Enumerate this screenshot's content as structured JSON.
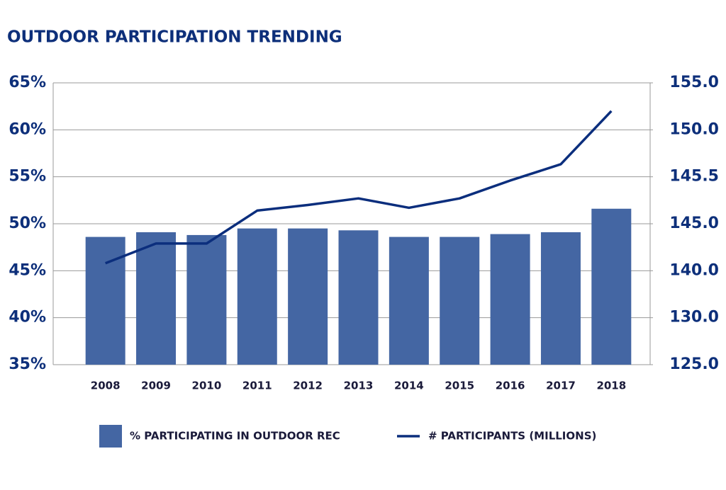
{
  "chart_data": {
    "type": "bar-line",
    "title": "OUTDOOR PARTICIPATION TRENDING",
    "categories": [
      "2008",
      "2009",
      "2010",
      "2011",
      "2012",
      "2013",
      "2014",
      "2015",
      "2016",
      "2017",
      "2018"
    ],
    "series": [
      {
        "name": "% PARTICIPATING IN OUTDOOR REC",
        "type": "bar",
        "color": "#4466a3",
        "values": [
          48.6,
          49.1,
          48.8,
          49.5,
          49.5,
          49.3,
          48.6,
          48.6,
          48.9,
          49.1,
          51.6
        ]
      },
      {
        "name": "# PARTICIPANTS (MILLIONS)",
        "type": "line",
        "axis": "y2",
        "color": "#0b2e7d",
        "values": [
          140.8,
          142.9,
          142.9,
          145.14,
          145.2,
          145.27,
          145.17,
          145.27,
          145.46,
          146.7,
          152.0
        ]
      }
    ],
    "ylim": [
      35,
      65
    ],
    "yticks": [
      {
        "value": 35,
        "label": "35%"
      },
      {
        "value": 40,
        "label": "40%"
      },
      {
        "value": 45,
        "label": "45%"
      },
      {
        "value": 50,
        "label": "50%"
      },
      {
        "value": 55,
        "label": "55%"
      },
      {
        "value": 60,
        "label": "60%"
      },
      {
        "value": 65,
        "label": "65%"
      }
    ],
    "y2lim": [
      125,
      155
    ],
    "y2ticks": [
      {
        "value": 125,
        "label": "125.0"
      },
      {
        "value": 130,
        "label": "130.0"
      },
      {
        "value": 140,
        "label": "140.0"
      },
      {
        "value": 145,
        "label": "145.0"
      },
      {
        "value": 145.5,
        "label": "145.5"
      },
      {
        "value": 150,
        "label": "150.0"
      },
      {
        "value": 155,
        "label": "155.0"
      }
    ],
    "grid": true,
    "legend": "bottom"
  }
}
